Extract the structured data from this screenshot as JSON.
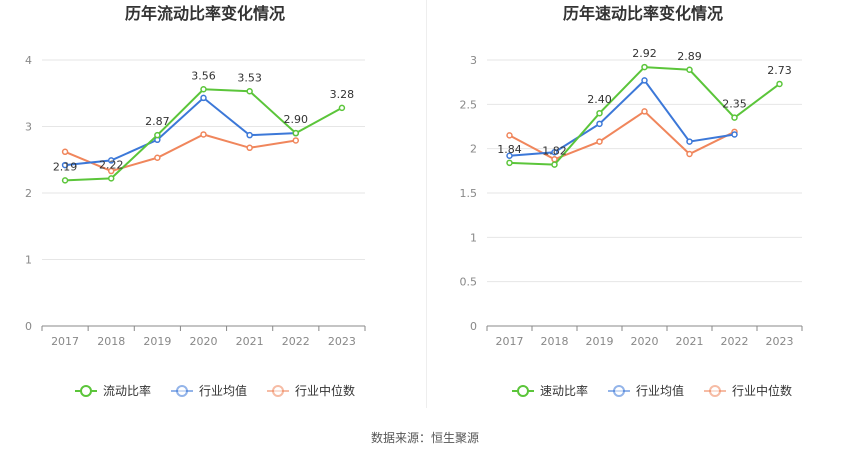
{
  "source_text": "数据来源：恒生聚源",
  "colors": {
    "primary": "#5bc53a",
    "avg": "#3c78d8",
    "median": "#f0865c",
    "grid": "#e6e6e6",
    "axis": "#888888"
  },
  "chart_data": [
    {
      "type": "line",
      "title": "历年流动比率变化情况",
      "categories": [
        "2017",
        "2018",
        "2019",
        "2020",
        "2021",
        "2022",
        "2023"
      ],
      "ylim": [
        0,
        4
      ],
      "yticks": [
        "0",
        "1",
        "2",
        "3",
        "4"
      ],
      "grid": true,
      "legend_position": "bottom",
      "series": [
        {
          "name": "流动比率",
          "values": [
            2.19,
            2.22,
            2.87,
            3.56,
            3.53,
            2.9,
            3.28
          ],
          "labels": [
            "2.19",
            "2.22",
            "2.87",
            "3.56",
            "3.53",
            "2.90",
            "3.28"
          ]
        },
        {
          "name": "行业均值",
          "values": [
            2.42,
            2.49,
            2.8,
            3.43,
            2.87,
            2.9,
            null
          ]
        },
        {
          "name": "行业中位数",
          "values": [
            2.62,
            2.33,
            2.53,
            2.88,
            2.68,
            2.79,
            null
          ]
        }
      ]
    },
    {
      "type": "line",
      "title": "历年速动比率变化情况",
      "categories": [
        "2017",
        "2018",
        "2019",
        "2020",
        "2021",
        "2022",
        "2023"
      ],
      "ylim": [
        0,
        3
      ],
      "yticks": [
        "0",
        "0.5",
        "1",
        "1.5",
        "2",
        "2.5",
        "3"
      ],
      "grid": true,
      "legend_position": "bottom",
      "series": [
        {
          "name": "速动比率",
          "values": [
            1.84,
            1.82,
            2.4,
            2.92,
            2.89,
            2.35,
            2.73
          ],
          "labels": [
            "1.84",
            "1.82",
            "2.40",
            "2.92",
            "2.89",
            "2.35",
            "2.73"
          ]
        },
        {
          "name": "行业均值",
          "values": [
            1.92,
            1.96,
            2.28,
            2.77,
            2.08,
            2.16,
            null
          ]
        },
        {
          "name": "行业中位数",
          "values": [
            2.15,
            1.88,
            2.08,
            2.42,
            1.94,
            2.19,
            null
          ]
        }
      ]
    }
  ]
}
